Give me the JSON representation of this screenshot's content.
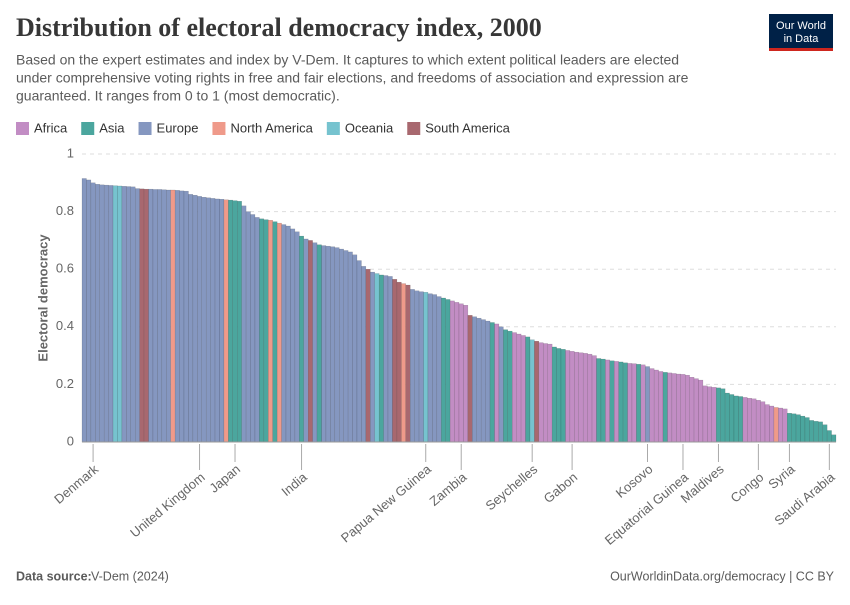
{
  "chart_data": {
    "type": "bar",
    "title": "Distribution of electoral democracy index, 2000",
    "subtitle": [
      "Based on the expert estimates and index by V-Dem. It captures to which extent political leaders are elected",
      "under comprehensive voting rights in free and fair elections, and freedoms of association and expression are",
      "guaranteed. It ranges from 0 to 1 (most democratic)."
    ],
    "logo": [
      "Our World",
      "in Data"
    ],
    "y_label": "Electoral democracy",
    "source_label": "Data source:",
    "source": "V-Dem (2024)",
    "credit": "OurWorldinData.org/democracy | CC BY",
    "ylim": [
      0,
      1
    ],
    "yticks": [
      0,
      0.2,
      0.4,
      0.6,
      0.8,
      1
    ],
    "grid": true,
    "legend": [
      {
        "name": "Africa",
        "color": "#c28dc4",
        "text_color": "#a4509f"
      },
      {
        "name": "Asia",
        "color": "#4ba69e",
        "text_color": "#18807a"
      },
      {
        "name": "Europe",
        "color": "#8597c0",
        "text_color": "#4c6a9c"
      },
      {
        "name": "North America",
        "color": "#ef9a8a",
        "text_color": "#c15065"
      },
      {
        "name": "Oceania",
        "color": "#76c3cf",
        "text_color": "#2fa3b8"
      },
      {
        "name": "South America",
        "color": "#a8686f",
        "text_color": "#883039"
      }
    ],
    "categories": [
      null,
      null,
      "Denmark",
      null,
      null,
      null,
      null,
      null,
      null,
      null,
      null,
      null,
      null,
      null,
      null,
      null,
      null,
      null,
      null,
      null,
      null,
      null,
      null,
      null,
      null,
      null,
      "United Kingdom",
      null,
      null,
      null,
      null,
      null,
      null,
      null,
      "Japan",
      null,
      null,
      null,
      null,
      null,
      null,
      null,
      null,
      null,
      null,
      null,
      null,
      null,
      null,
      "India",
      null,
      null,
      null,
      null,
      null,
      null,
      null,
      null,
      null,
      null,
      null,
      null,
      null,
      null,
      null,
      null,
      null,
      null,
      null,
      null,
      null,
      null,
      null,
      null,
      null,
      null,
      null,
      "Papua New Guinea",
      null,
      null,
      null,
      null,
      null,
      null,
      null,
      "Zambia",
      null,
      null,
      null,
      null,
      null,
      null,
      null,
      null,
      null,
      null,
      null,
      null,
      null,
      null,
      null,
      "Seychelles",
      null,
      null,
      null,
      null,
      null,
      null,
      null,
      null,
      "Gabon",
      null,
      null,
      null,
      null,
      null,
      null,
      null,
      null,
      null,
      null,
      null,
      null,
      null,
      null,
      null,
      null,
      "Kosovo",
      null,
      null,
      null,
      null,
      null,
      null,
      null,
      "Equatorial Guinea",
      null,
      null,
      null,
      null,
      null,
      null,
      null,
      "Maldives",
      null,
      null,
      null,
      null,
      null,
      null,
      null,
      null,
      "Congo",
      null,
      null,
      null,
      null,
      null,
      null,
      "Syria",
      null,
      null,
      null,
      null,
      null,
      null,
      null,
      null,
      "Saudi Arabia",
      null
    ],
    "values": [
      0.915,
      0.91,
      0.9,
      0.895,
      0.893,
      0.892,
      0.891,
      0.89,
      0.889,
      0.888,
      0.887,
      0.886,
      0.88,
      0.879,
      0.878,
      0.878,
      0.877,
      0.877,
      0.876,
      0.875,
      0.875,
      0.874,
      0.872,
      0.871,
      0.86,
      0.857,
      0.853,
      0.85,
      0.848,
      0.846,
      0.844,
      0.843,
      0.841,
      0.84,
      0.838,
      0.836,
      0.82,
      0.8,
      0.79,
      0.78,
      0.775,
      0.772,
      0.77,
      0.765,
      0.76,
      0.755,
      0.75,
      0.74,
      0.73,
      0.715,
      0.705,
      0.7,
      0.692,
      0.685,
      0.682,
      0.68,
      0.678,
      0.675,
      0.67,
      0.665,
      0.66,
      0.65,
      0.63,
      0.61,
      0.6,
      0.59,
      0.585,
      0.58,
      0.578,
      0.575,
      0.565,
      0.555,
      0.55,
      0.545,
      0.53,
      0.525,
      0.522,
      0.52,
      0.515,
      0.512,
      0.505,
      0.5,
      0.495,
      0.49,
      0.485,
      0.48,
      0.475,
      0.44,
      0.435,
      0.43,
      0.425,
      0.42,
      0.415,
      0.41,
      0.4,
      0.39,
      0.385,
      0.38,
      0.375,
      0.37,
      0.365,
      0.355,
      0.35,
      0.345,
      0.342,
      0.34,
      0.33,
      0.325,
      0.322,
      0.318,
      0.315,
      0.312,
      0.31,
      0.308,
      0.305,
      0.3,
      0.29,
      0.288,
      0.285,
      0.282,
      0.28,
      0.278,
      0.275,
      0.273,
      0.272,
      0.27,
      0.268,
      0.262,
      0.255,
      0.25,
      0.245,
      0.242,
      0.24,
      0.238,
      0.236,
      0.235,
      0.232,
      0.225,
      0.22,
      0.215,
      0.195,
      0.192,
      0.19,
      0.188,
      0.185,
      0.17,
      0.165,
      0.16,
      0.158,
      0.155,
      0.152,
      0.15,
      0.145,
      0.14,
      0.13,
      0.125,
      0.12,
      0.118,
      0.115,
      0.1,
      0.098,
      0.095,
      0.09,
      0.085,
      0.075,
      0.072,
      0.07,
      0.06,
      0.04,
      0.025
    ],
    "regions": [
      2,
      2,
      2,
      2,
      2,
      2,
      2,
      4,
      4,
      2,
      2,
      2,
      2,
      5,
      5,
      2,
      2,
      2,
      2,
      2,
      3,
      2,
      2,
      2,
      2,
      2,
      2,
      2,
      2,
      2,
      2,
      2,
      3,
      1,
      1,
      1,
      2,
      2,
      2,
      2,
      1,
      1,
      3,
      1,
      3,
      2,
      2,
      2,
      2,
      1,
      2,
      5,
      2,
      1,
      2,
      2,
      2,
      2,
      2,
      2,
      2,
      2,
      2,
      2,
      5,
      2,
      4,
      1,
      2,
      2,
      5,
      5,
      3,
      5,
      2,
      2,
      2,
      4,
      2,
      2,
      2,
      1,
      1,
      0,
      0,
      0,
      0,
      5,
      2,
      2,
      2,
      2,
      1,
      0,
      2,
      1,
      1,
      0,
      0,
      0,
      1,
      4,
      5,
      0,
      0,
      0,
      1,
      1,
      1,
      0,
      0,
      0,
      0,
      0,
      0,
      0,
      1,
      1,
      0,
      1,
      0,
      1,
      1,
      0,
      0,
      1,
      0,
      2,
      0,
      0,
      0,
      1,
      0,
      0,
      0,
      0,
      0,
      0,
      0,
      0,
      0,
      0,
      0,
      1,
      1,
      1,
      1,
      1,
      1,
      0,
      0,
      0,
      0,
      0,
      0,
      0,
      3,
      0,
      0,
      1,
      1,
      1,
      1,
      1,
      1,
      1,
      1,
      1,
      1,
      1
    ]
  }
}
